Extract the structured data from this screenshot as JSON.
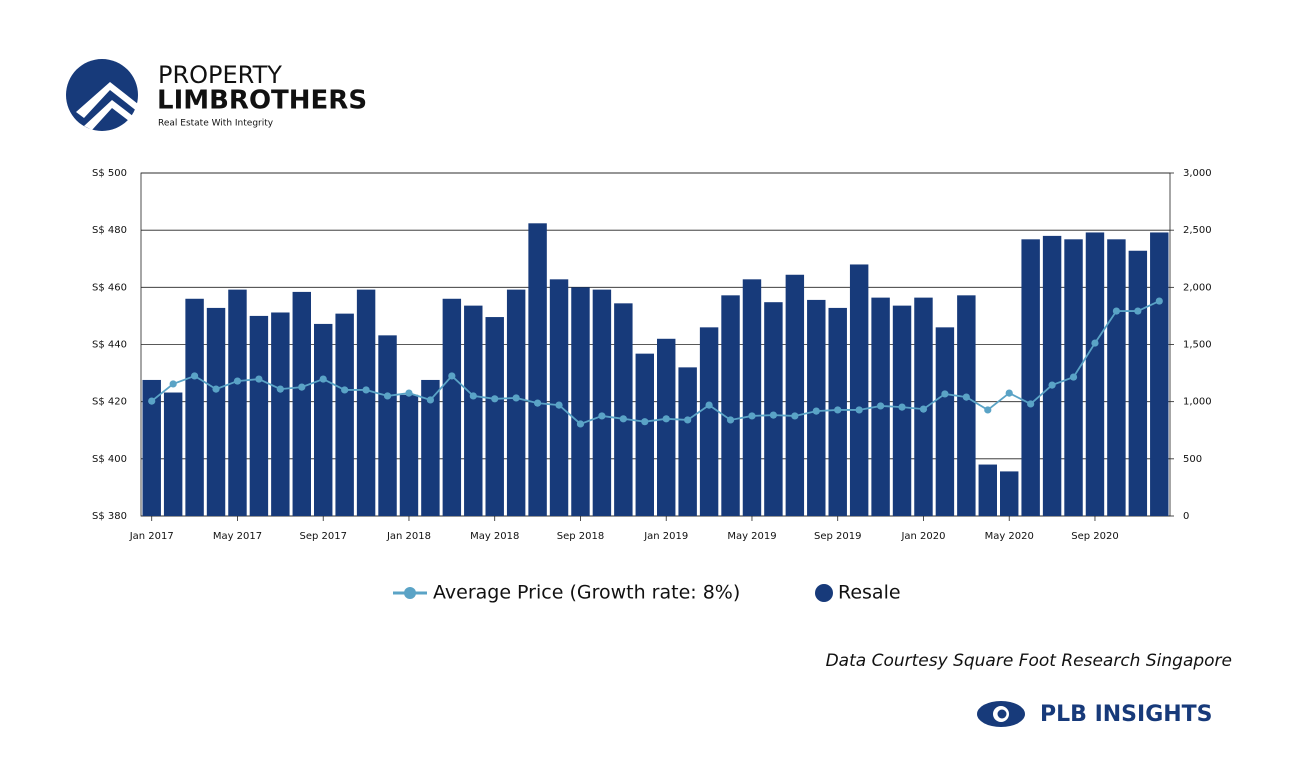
{
  "header": {
    "brand_top": "PROPERTY",
    "brand_main": "LIMBROTHERS",
    "tagline": "Real Estate With Integrity"
  },
  "chart_data": {
    "type": "combo",
    "categories": [
      "Jan 2017",
      null,
      null,
      null,
      "May 2017",
      null,
      null,
      null,
      "Sep 2017",
      null,
      null,
      null,
      "Jan 2018",
      null,
      null,
      null,
      "May 2018",
      null,
      null,
      null,
      "Sep 2018",
      null,
      null,
      null,
      "Jan 2019",
      null,
      null,
      null,
      "May 2019",
      null,
      null,
      null,
      "Sep 2019",
      null,
      null,
      null,
      "Jan 2020",
      null,
      null,
      null,
      "May 2020",
      null,
      null,
      null,
      "Sep 2020",
      null,
      null,
      null
    ],
    "series": [
      {
        "name": "Resale",
        "type": "bar",
        "axis": "y2",
        "color": "#173a7a",
        "values": [
          1190,
          1080,
          1900,
          1820,
          1980,
          1750,
          1780,
          1960,
          1680,
          1770,
          1980,
          1580,
          1060,
          1190,
          1900,
          1840,
          1740,
          1980,
          2560,
          2070,
          2000,
          1980,
          1860,
          1420,
          1550,
          1300,
          1650,
          1930,
          2070,
          1870,
          2110,
          1890,
          1820,
          2200,
          1910,
          1840,
          1910,
          1650,
          1930,
          450,
          390,
          2420,
          2450,
          2420,
          2480,
          2420,
          2320,
          2480
        ]
      },
      {
        "name": "Average Price (Growth rate: 8%)",
        "type": "line",
        "axis": "y",
        "color": "#5aa3c6",
        "values": [
          420.2,
          426.2,
          429,
          424.4,
          427.2,
          427.9,
          424.4,
          425.1,
          427.9,
          424.1,
          424.1,
          422,
          423,
          420.6,
          429,
          422,
          421,
          421.3,
          419.5,
          418.8,
          412.2,
          415,
          414,
          413,
          414,
          413.6,
          418.8,
          413.6,
          415,
          415.3,
          415,
          416.7,
          417.1,
          417.1,
          418.5,
          418.1,
          417.4,
          422.7,
          421.6,
          417.1,
          423,
          419.2,
          425.8,
          428.6,
          440.5,
          451.7,
          451.7,
          455.2
        ]
      }
    ],
    "ylim": [
      380,
      500
    ],
    "yticks": [
      {
        "value": 380,
        "label": "S$ 380"
      },
      {
        "value": 400,
        "label": "S$ 400"
      },
      {
        "value": 420,
        "label": "S$ 420"
      },
      {
        "value": 440,
        "label": "S$ 440"
      },
      {
        "value": 460,
        "label": "S$ 460"
      },
      {
        "value": 480,
        "label": "S$ 480"
      },
      {
        "value": 500,
        "label": "S$ 500"
      }
    ],
    "y2lim": [
      0,
      3000
    ],
    "y2ticks": [
      0,
      500,
      {
        "value": 1000,
        "label": "1,000"
      },
      {
        "value": 1500,
        "label": "1,500"
      },
      {
        "value": 2000,
        "label": "2,000"
      },
      {
        "value": 2500,
        "label": "2,500"
      },
      {
        "value": 3000,
        "label": "3,000"
      }
    ],
    "grid": true,
    "source": "Data Courtesy Square Foot Research Singapore"
  },
  "footer": {
    "brand": "PLB INSIGHTS"
  }
}
